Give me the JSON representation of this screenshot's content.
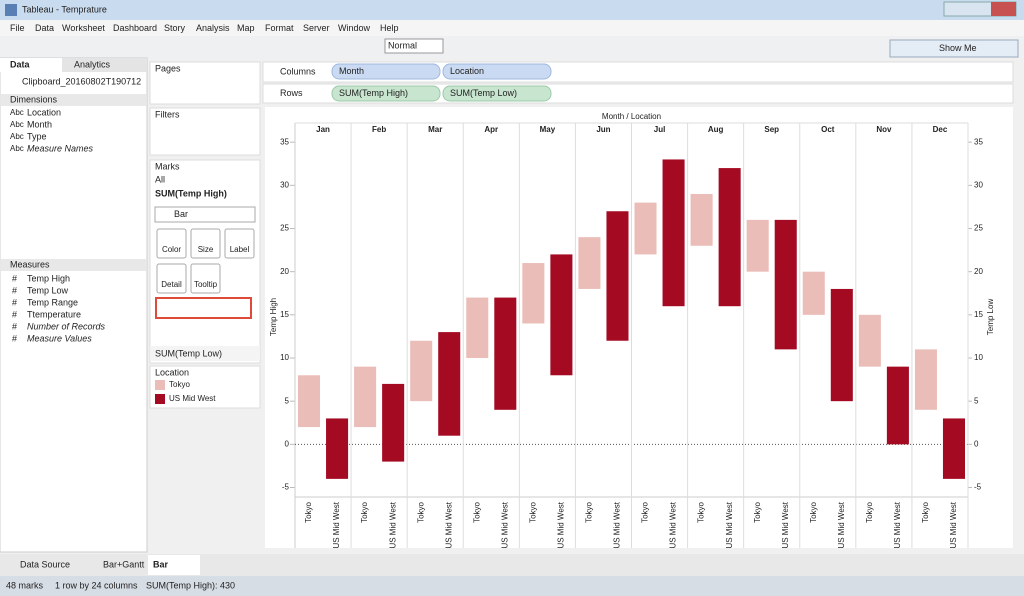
{
  "window_title": "Tableau - Temprature",
  "menu": [
    "File",
    "Data",
    "Worksheet",
    "Dashboard",
    "Story",
    "Analysis",
    "Map",
    "Format",
    "Server",
    "Window",
    "Help"
  ],
  "toolbar": {
    "mark_size": "Normal",
    "show_me": "Show Me"
  },
  "data_pane": {
    "tabs": [
      "Data",
      "Analytics"
    ],
    "source": "Clipboard_20160802T190712",
    "dimensions_title": "Dimensions",
    "dimensions": [
      {
        "type": "Abc",
        "name": "Location"
      },
      {
        "type": "Abc",
        "name": "Month"
      },
      {
        "type": "Abc",
        "name": "Type"
      },
      {
        "type": "Abc",
        "name": "Measure Names"
      }
    ],
    "measures_title": "Measures",
    "measures": [
      {
        "type": "#",
        "name": "Temp High"
      },
      {
        "type": "#",
        "name": "Temp Low"
      },
      {
        "type": "#",
        "name": "Temp Range"
      },
      {
        "type": "#",
        "name": "Ttemperature"
      },
      {
        "type": "#",
        "name": "Number of Records"
      },
      {
        "type": "#",
        "name": "Measure Values"
      }
    ]
  },
  "cards": {
    "pages": "Pages",
    "filters": "Filters",
    "marks": "Marks",
    "all": "All",
    "measure_1": "SUM(Temp High)",
    "mark_type": "Bar",
    "buttons": [
      "Color",
      "Size",
      "Label",
      "Detail",
      "Tooltip"
    ],
    "measure_2": "SUM(Temp Low)"
  },
  "shelves": {
    "columns": {
      "label": "Columns",
      "pills": [
        "Month",
        "Location"
      ]
    },
    "rows": {
      "label": "Rows",
      "pills": [
        "SUM(Temp High)",
        "SUM(Temp Low)"
      ]
    }
  },
  "sheet_tabs": [
    "Data Source",
    "Bar+Gantt",
    "Bar"
  ],
  "status": [
    "48 marks",
    "1 row by 24 columns",
    "SUM(Temp High): 430"
  ],
  "chart_data": {
    "type": "floating-bar",
    "header": "Month  /  Location",
    "categories": [
      "Jan",
      "Feb",
      "Mar",
      "Apr",
      "May",
      "Jun",
      "Jul",
      "Aug",
      "Sep",
      "Oct",
      "Nov",
      "Dec"
    ],
    "legend_title": "Location",
    "series": [
      {
        "name": "Tokyo",
        "color": "#ebbdb8",
        "low": [
          2,
          2,
          5,
          10,
          14,
          18,
          22,
          23,
          20,
          15,
          9,
          4
        ],
        "high": [
          8,
          9,
          12,
          17,
          21,
          24,
          28,
          29,
          26,
          20,
          15,
          11
        ]
      },
      {
        "name": "US Mid West",
        "color": "#a50a23",
        "low": [
          -4,
          -2,
          1,
          4,
          8,
          12,
          16,
          16,
          11,
          5,
          0,
          -4
        ],
        "high": [
          3,
          7,
          13,
          17,
          22,
          27,
          33,
          32,
          26,
          18,
          9,
          3
        ]
      }
    ],
    "ylabel": "Temp High",
    "y2label": "Temp Low",
    "ylim": [
      -6.1,
      35.6
    ],
    "yticks": [
      -5,
      0,
      5,
      10,
      15,
      20,
      25,
      30,
      35
    ],
    "y2lim": [
      -6.1,
      35.6
    ],
    "y2ticks": [
      -5,
      0,
      5,
      10,
      15,
      20,
      25,
      30,
      35
    ]
  }
}
